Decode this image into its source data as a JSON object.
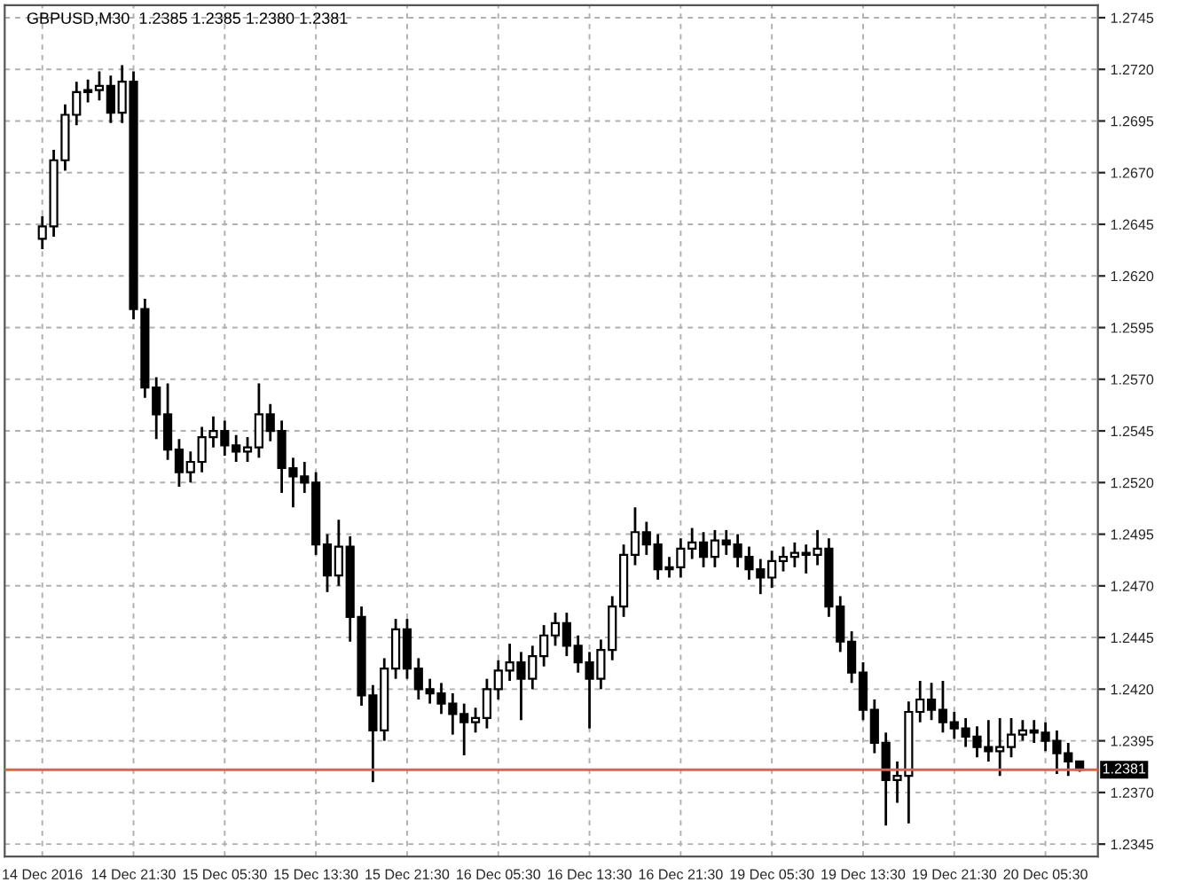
{
  "chart_data": {
    "type": "candlestick",
    "title": "GBPUSD,M30  1.2385 1.2385 1.2380 1.2381",
    "categories": [
      "14 Dec 2016",
      null,
      null,
      null,
      null,
      null,
      null,
      null,
      "14 Dec 21:30",
      null,
      null,
      null,
      null,
      null,
      null,
      null,
      "15 Dec 05:30",
      null,
      null,
      null,
      null,
      null,
      null,
      null,
      "15 Dec 13:30",
      null,
      null,
      null,
      null,
      null,
      null,
      null,
      "15 Dec 21:30",
      null,
      null,
      null,
      null,
      null,
      null,
      null,
      "16 Dec 05:30",
      null,
      null,
      null,
      null,
      null,
      null,
      null,
      "16 Dec 13:30",
      null,
      null,
      null,
      null,
      null,
      null,
      null,
      "16 Dec 21:30",
      null,
      null,
      null,
      null,
      null,
      null,
      null,
      "19 Dec 05:30",
      null,
      null,
      null,
      null,
      null,
      null,
      null,
      "19 Dec 13:30",
      null,
      null,
      null,
      null,
      null,
      null,
      null,
      "19 Dec 21:30",
      null,
      null,
      null,
      null,
      null,
      null,
      null,
      "20 Dec 05:30",
      null,
      null,
      null
    ],
    "ohlc": [
      [
        1.2638,
        1.2649,
        1.2633,
        1.2644
      ],
      [
        1.2644,
        1.2681,
        1.2639,
        1.2676
      ],
      [
        1.2676,
        1.2703,
        1.2671,
        1.2698
      ],
      [
        1.2698,
        1.2714,
        1.2693,
        1.2709
      ],
      [
        1.2709,
        1.2715,
        1.2704,
        1.271
      ],
      [
        1.271,
        1.2719,
        1.2705,
        1.2712
      ],
      [
        1.2712,
        1.2717,
        1.2694,
        1.2699
      ],
      [
        1.2699,
        1.2722,
        1.2694,
        1.2714
      ],
      [
        1.2714,
        1.2719,
        1.2599,
        1.2604
      ],
      [
        1.2604,
        1.2609,
        1.2561,
        1.2566
      ],
      [
        1.2566,
        1.2571,
        1.2541,
        1.2553
      ],
      [
        1.2553,
        1.2568,
        1.2531,
        1.2536
      ],
      [
        1.2536,
        1.2541,
        1.2518,
        1.2525
      ],
      [
        1.2525,
        1.2535,
        1.252,
        1.253
      ],
      [
        1.253,
        1.2547,
        1.2525,
        1.2542
      ],
      [
        1.2542,
        1.2552,
        1.2537,
        1.2545
      ],
      [
        1.2545,
        1.255,
        1.2533,
        1.2538
      ],
      [
        1.2538,
        1.2543,
        1.253,
        1.2535
      ],
      [
        1.2535,
        1.2542,
        1.253,
        1.2537
      ],
      [
        1.2537,
        1.2568,
        1.2532,
        1.2553
      ],
      [
        1.2553,
        1.2558,
        1.254,
        1.2545
      ],
      [
        1.2545,
        1.255,
        1.2515,
        1.2527
      ],
      [
        1.2527,
        1.2532,
        1.2508,
        1.2523
      ],
      [
        1.2523,
        1.253,
        1.2515,
        1.252
      ],
      [
        1.252,
        1.2525,
        1.2485,
        1.249
      ],
      [
        1.249,
        1.2495,
        1.2467,
        1.2475
      ],
      [
        1.2475,
        1.2502,
        1.247,
        1.2489
      ],
      [
        1.2489,
        1.2494,
        1.2443,
        1.2455
      ],
      [
        1.2455,
        1.246,
        1.2412,
        1.2417
      ],
      [
        1.2417,
        1.2422,
        1.2375,
        1.24
      ],
      [
        1.24,
        1.2435,
        1.2395,
        1.243
      ],
      [
        1.243,
        1.2454,
        1.2425,
        1.2449
      ],
      [
        1.2449,
        1.2454,
        1.2425,
        1.243
      ],
      [
        1.243,
        1.2435,
        1.2415,
        1.242
      ],
      [
        1.242,
        1.2425,
        1.2413,
        1.2418
      ],
      [
        1.2418,
        1.2423,
        1.2408,
        1.2413
      ],
      [
        1.2413,
        1.2418,
        1.2398,
        1.2408
      ],
      [
        1.2408,
        1.2413,
        1.2388,
        1.2404
      ],
      [
        1.2404,
        1.2411,
        1.2399,
        1.2406
      ],
      [
        1.2406,
        1.2425,
        1.2401,
        1.242
      ],
      [
        1.242,
        1.2434,
        1.2415,
        1.2429
      ],
      [
        1.2429,
        1.2442,
        1.2424,
        1.2433
      ],
      [
        1.2433,
        1.2438,
        1.2405,
        1.2425
      ],
      [
        1.2425,
        1.2441,
        1.242,
        1.2436
      ],
      [
        1.2436,
        1.2451,
        1.2431,
        1.2446
      ],
      [
        1.2446,
        1.2457,
        1.2441,
        1.2452
      ],
      [
        1.2452,
        1.2457,
        1.2436,
        1.2441
      ],
      [
        1.2441,
        1.2446,
        1.2428,
        1.2433
      ],
      [
        1.2433,
        1.2438,
        1.2401,
        1.2425
      ],
      [
        1.2425,
        1.2444,
        1.242,
        1.2439
      ],
      [
        1.2439,
        1.2465,
        1.2434,
        1.246
      ],
      [
        1.246,
        1.249,
        1.2455,
        1.2485
      ],
      [
        1.2485,
        1.2508,
        1.248,
        1.2496
      ],
      [
        1.2496,
        1.2501,
        1.2485,
        1.249
      ],
      [
        1.249,
        1.2495,
        1.2473,
        1.2478
      ],
      [
        1.2478,
        1.2484,
        1.2474,
        1.2479
      ],
      [
        1.2479,
        1.2493,
        1.2474,
        1.2488
      ],
      [
        1.2488,
        1.2498,
        1.2483,
        1.2491
      ],
      [
        1.2491,
        1.2496,
        1.2479,
        1.2484
      ],
      [
        1.2484,
        1.2497,
        1.2479,
        1.2492
      ],
      [
        1.2492,
        1.2497,
        1.2485,
        1.249
      ],
      [
        1.249,
        1.2495,
        1.2479,
        1.2484
      ],
      [
        1.2484,
        1.2489,
        1.2473,
        1.2478
      ],
      [
        1.2478,
        1.2483,
        1.2466,
        1.2474
      ],
      [
        1.2474,
        1.2487,
        1.2469,
        1.2482
      ],
      [
        1.2482,
        1.2489,
        1.2477,
        1.2484
      ],
      [
        1.2484,
        1.2491,
        1.2479,
        1.2486
      ],
      [
        1.2486,
        1.249,
        1.2476,
        1.2485
      ],
      [
        1.2485,
        1.2497,
        1.248,
        1.2488
      ],
      [
        1.2488,
        1.2493,
        1.2455,
        1.246
      ],
      [
        1.246,
        1.2465,
        1.2438,
        1.2443
      ],
      [
        1.2443,
        1.2448,
        1.2423,
        1.2428
      ],
      [
        1.2428,
        1.2433,
        1.2405,
        1.241
      ],
      [
        1.241,
        1.2415,
        1.2389,
        1.2394
      ],
      [
        1.2394,
        1.2399,
        1.2354,
        1.2376
      ],
      [
        1.2376,
        1.2385,
        1.2365,
        1.2378
      ],
      [
        1.2378,
        1.2414,
        1.2355,
        1.2409
      ],
      [
        1.2409,
        1.2424,
        1.2404,
        1.2415
      ],
      [
        1.2415,
        1.2423,
        1.2405,
        1.241
      ],
      [
        1.241,
        1.2424,
        1.2399,
        1.2404
      ],
      [
        1.2404,
        1.2409,
        1.2396,
        1.2401
      ],
      [
        1.2401,
        1.2406,
        1.2392,
        1.2397
      ],
      [
        1.2397,
        1.2402,
        1.2387,
        1.2392
      ],
      [
        1.2392,
        1.2405,
        1.2385,
        1.239
      ],
      [
        1.239,
        1.2406,
        1.2378,
        1.2392
      ],
      [
        1.2392,
        1.2406,
        1.2387,
        1.2398
      ],
      [
        1.2398,
        1.2405,
        1.2395,
        1.24
      ],
      [
        1.24,
        1.2405,
        1.2394,
        1.2399
      ],
      [
        1.2399,
        1.2404,
        1.239,
        1.2395
      ],
      [
        1.2395,
        1.24,
        1.2379,
        1.2389
      ],
      [
        1.2389,
        1.2394,
        1.2378,
        1.2385
      ],
      [
        1.2385,
        1.2385,
        1.238,
        1.2381
      ]
    ],
    "ylim": [
      1.2339,
      1.2751
    ],
    "yticks": [
      {
        "value": 1.2345,
        "label": "1.2345"
      },
      {
        "value": 1.237,
        "label": "1.2370"
      },
      {
        "value": 1.2395,
        "label": "1.2395"
      },
      {
        "value": 1.242,
        "label": "1.2420"
      },
      {
        "value": 1.2445,
        "label": "1.2445"
      },
      {
        "value": 1.247,
        "label": "1.2470"
      },
      {
        "value": 1.2495,
        "label": "1.2495"
      },
      {
        "value": 1.252,
        "label": "1.2520"
      },
      {
        "value": 1.2545,
        "label": "1.2545"
      },
      {
        "value": 1.257,
        "label": "1.2570"
      },
      {
        "value": 1.2595,
        "label": "1.2595"
      },
      {
        "value": 1.262,
        "label": "1.2620"
      },
      {
        "value": 1.2645,
        "label": "1.2645"
      },
      {
        "value": 1.267,
        "label": "1.2670"
      },
      {
        "value": 1.2695,
        "label": "1.2695"
      },
      {
        "value": 1.272,
        "label": "1.2720"
      },
      {
        "value": 1.2745,
        "label": "1.2745"
      }
    ],
    "ref_lines": [
      {
        "axis": "y",
        "value": 1.2381,
        "label": "1.2381",
        "color": "#e8603c"
      }
    ],
    "grid": true
  }
}
